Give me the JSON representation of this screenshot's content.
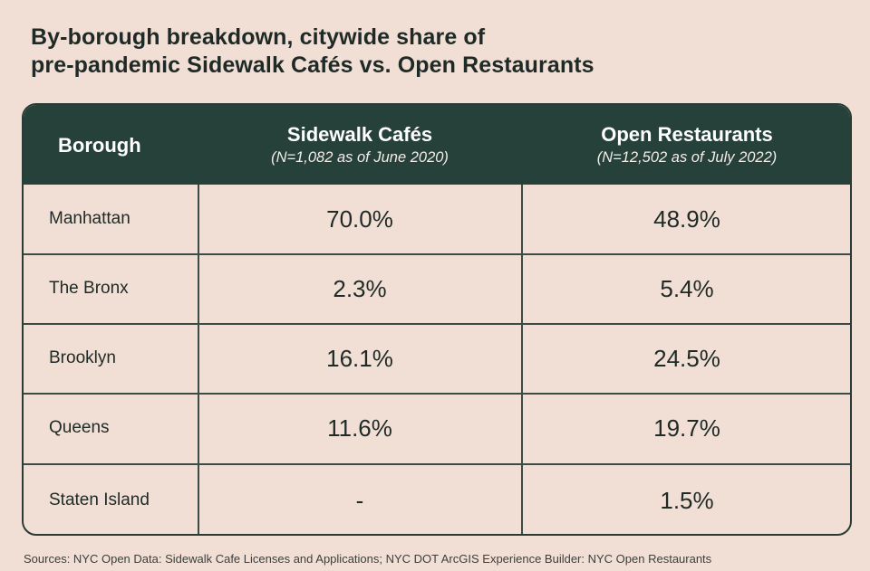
{
  "title": {
    "line1": "By-borough breakdown, citywide share of",
    "line2": "pre-pandemic Sidewalk Cafés vs. Open Restaurants"
  },
  "table": {
    "headers": {
      "borough": "Borough",
      "sidewalk": "Sidewalk Cafés",
      "sidewalk_note": "(N=1,082 as of June 2020)",
      "open": "Open Restaurants",
      "open_note": "(N=12,502 as of July 2022)"
    },
    "rows": [
      {
        "borough": "Manhattan",
        "sidewalk": "70.0%",
        "open": "48.9%"
      },
      {
        "borough": "The Bronx",
        "sidewalk": "2.3%",
        "open": "5.4%"
      },
      {
        "borough": "Brooklyn",
        "sidewalk": "16.1%",
        "open": "24.5%"
      },
      {
        "borough": "Queens",
        "sidewalk": "11.6%",
        "open": "19.7%"
      },
      {
        "borough": "Staten Island",
        "sidewalk": "-",
        "open": "1.5%"
      }
    ]
  },
  "source": "Sources: NYC Open Data: Sidewalk Cafe Licenses and Applications; NYC DOT ArcGIS Experience Builder: NYC Open Restaurants",
  "colors": {
    "background": "#f1dfd5",
    "header": "#26403a",
    "text": "#1f2a27"
  },
  "chart_data": {
    "type": "table",
    "title": "By-borough breakdown, citywide share of pre-pandemic Sidewalk Cafés vs. Open Restaurants",
    "columns": [
      "Borough",
      "Sidewalk Cafés (N=1,082 as of June 2020)",
      "Open Restaurants (N=12,502 as of July 2022)"
    ],
    "categories": [
      "Manhattan",
      "The Bronx",
      "Brooklyn",
      "Queens",
      "Staten Island"
    ],
    "series": [
      {
        "name": "Sidewalk Cafés",
        "values": [
          70.0,
          2.3,
          16.1,
          11.6,
          null
        ]
      },
      {
        "name": "Open Restaurants",
        "values": [
          48.9,
          5.4,
          24.5,
          19.7,
          1.5
        ]
      }
    ]
  }
}
